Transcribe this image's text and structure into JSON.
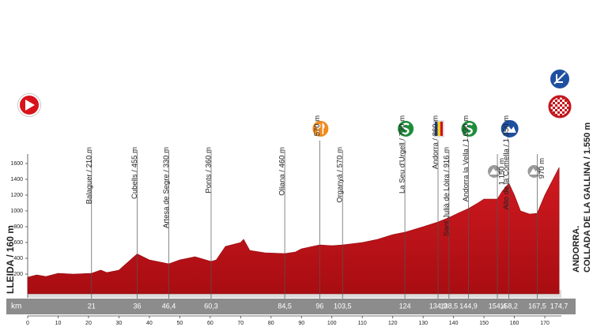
{
  "chart_data": {
    "type": "area",
    "color": "#c4161c",
    "xlim": [
      0,
      175
    ],
    "ylim": [
      0,
      1700
    ],
    "xticks": [
      0,
      10,
      20,
      30,
      40,
      50,
      60,
      70,
      80,
      90,
      100,
      110,
      120,
      130,
      140,
      150,
      160,
      170
    ],
    "yticks": [
      200,
      400,
      600,
      800,
      1000,
      1200,
      1400,
      1600
    ],
    "x": [
      0,
      3,
      6,
      10,
      15,
      21,
      24,
      26,
      30,
      36,
      40,
      46.4,
      50,
      55,
      60.3,
      62,
      65,
      70,
      71,
      73,
      78,
      84.5,
      88,
      90,
      96,
      100,
      103.5,
      110,
      115,
      120,
      124,
      130,
      134.9,
      138.5,
      142,
      144.9,
      148,
      150,
      154.4,
      156,
      158.2,
      160,
      162,
      165,
      167.5,
      170,
      174.7
    ],
    "values": [
      160,
      190,
      170,
      210,
      200,
      210,
      250,
      220,
      250,
      455,
      380,
      330,
      380,
      420,
      360,
      380,
      550,
      600,
      640,
      500,
      470,
      460,
      480,
      520,
      570,
      560,
      570,
      600,
      640,
      700,
      730,
      800,
      860,
      916,
      980,
      1030,
      1100,
      1150,
      1150,
      1250,
      1350,
      1200,
      1000,
      960,
      970,
      1200,
      1550
    ],
    "start_label": "LLEIDA / 160 m",
    "finish_label": [
      "ANDORRA.",
      "COLLADA DE LA GALLINA / 1.550 m"
    ],
    "km_label": "km",
    "waypoints": [
      {
        "name": "Balaguer / 210 m",
        "km": 21
      },
      {
        "name": "Cubells / 455 m",
        "km": 36
      },
      {
        "name": "Artesa de Segre / 330 m",
        "km": {
          "value": 46.4,
          "label": "46,4"
        }
      },
      {
        "name": "Ponts / 360 m",
        "km": {
          "value": 60.3,
          "label": "60,3"
        }
      },
      {
        "name": "Oliana / 460 m",
        "km": {
          "value": 84.5,
          "label": "84,5"
        }
      },
      {
        "name": "570 m",
        "km": 96,
        "icon": "food"
      },
      {
        "name": "Organyá / 570 m",
        "km": {
          "value": 103.5,
          "label": "103,5"
        }
      },
      {
        "name": "La Seu d'Urgell / 730 m",
        "km": 124,
        "icon": "sprint"
      },
      {
        "name": "Andorra / 860 m",
        "km": {
          "value": 134.9,
          "label": "134,9"
        },
        "icon": "flag"
      },
      {
        "name": "Sant Julià de Lòira / 916 m",
        "km": {
          "value": 138.5,
          "label": "138,5"
        }
      },
      {
        "name": "Andorra la Vella / 1.030 m",
        "km": {
          "value": 144.9,
          "label": "144,9"
        },
        "icon": "sprint"
      },
      {
        "name": "1.150 m",
        "km": {
          "value": 154.4,
          "label": "154,4"
        },
        "icon": "climb-start"
      },
      {
        "name": "Alto de la Comella / 1.350 m",
        "km": {
          "value": 158.2,
          "label": "158,2"
        },
        "icon": "mountain"
      },
      {
        "name": "970 m",
        "km": {
          "value": 167.5,
          "label": "167,5"
        },
        "icon": "climb-start"
      },
      {
        "name": "",
        "km": {
          "value": 174.7,
          "label": "174,7"
        }
      }
    ]
  }
}
